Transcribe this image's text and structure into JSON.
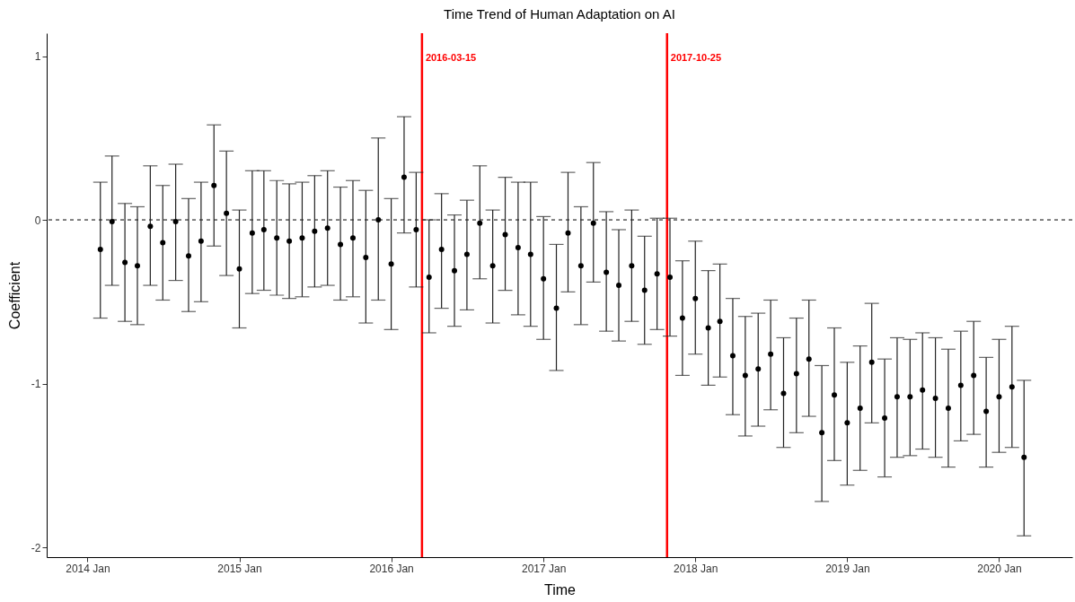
{
  "chart_data": {
    "type": "scatter",
    "title": "Time Trend of Human Adaptation on AI",
    "xlabel": "Time",
    "ylabel": "Coefficient",
    "marker": "circle",
    "x": [
      "2014-02",
      "2014-03",
      "2014-04",
      "2014-05",
      "2014-06",
      "2014-07",
      "2014-08",
      "2014-09",
      "2014-10",
      "2014-11",
      "2014-12",
      "2015-01",
      "2015-02",
      "2015-03",
      "2015-04",
      "2015-05",
      "2015-06",
      "2015-07",
      "2015-08",
      "2015-09",
      "2015-10",
      "2015-11",
      "2015-12",
      "2016-01",
      "2016-02",
      "2016-03",
      "2016-04",
      "2016-05",
      "2016-06",
      "2016-07",
      "2016-08",
      "2016-09",
      "2016-10",
      "2016-11",
      "2016-12",
      "2017-01",
      "2017-02",
      "2017-03",
      "2017-04",
      "2017-05",
      "2017-06",
      "2017-07",
      "2017-08",
      "2017-09",
      "2017-10",
      "2017-11",
      "2017-12",
      "2018-01",
      "2018-02",
      "2018-03",
      "2018-04",
      "2018-05",
      "2018-06",
      "2018-07",
      "2018-08",
      "2018-09",
      "2018-10",
      "2018-11",
      "2018-12",
      "2019-01",
      "2019-02",
      "2019-03",
      "2019-04",
      "2019-05",
      "2019-06",
      "2019-07",
      "2019-08",
      "2019-09",
      "2019-10",
      "2019-11",
      "2019-12",
      "2020-01",
      "2020-02",
      "2020-03"
    ],
    "series": [
      {
        "color": "#000000",
        "values": [
          -0.18,
          -0.01,
          -0.26,
          -0.28,
          -0.04,
          -0.14,
          -0.01,
          -0.22,
          -0.13,
          0.21,
          0.04,
          -0.3,
          -0.08,
          -0.06,
          -0.11,
          -0.13,
          -0.11,
          -0.07,
          -0.05,
          -0.15,
          -0.11,
          -0.23,
          0.0,
          -0.27,
          0.26,
          -0.06,
          -0.35,
          -0.18,
          -0.31,
          -0.21,
          -0.02,
          -0.28,
          -0.09,
          -0.17,
          -0.21,
          -0.36,
          -0.54,
          -0.08,
          -0.28,
          -0.02,
          -0.32,
          -0.4,
          -0.28,
          -0.43,
          -0.33,
          -0.35,
          -0.6,
          -0.48,
          -0.66,
          -0.62,
          -0.83,
          -0.95,
          -0.91,
          -0.82,
          -1.06,
          -0.94,
          -0.85,
          -1.3,
          -1.07,
          -1.24,
          -1.15,
          -0.87,
          -1.21,
          -1.08,
          -1.08,
          -1.04,
          -1.09,
          -1.15,
          -1.01,
          -0.95,
          -1.17,
          -1.08,
          -1.02,
          -1.45
        ],
        "errors": [
          [
            -0.6,
            0.23
          ],
          [
            -0.4,
            0.39
          ],
          [
            -0.62,
            0.1
          ],
          [
            -0.64,
            0.08
          ],
          [
            -0.4,
            0.33
          ],
          [
            -0.49,
            0.21
          ],
          [
            -0.37,
            0.34
          ],
          [
            -0.56,
            0.13
          ],
          [
            -0.5,
            0.23
          ],
          [
            -0.16,
            0.58
          ],
          [
            -0.34,
            0.42
          ],
          [
            -0.66,
            0.06
          ],
          [
            -0.45,
            0.3
          ],
          [
            -0.43,
            0.3
          ],
          [
            -0.46,
            0.24
          ],
          [
            -0.48,
            0.22
          ],
          [
            -0.47,
            0.23
          ],
          [
            -0.41,
            0.27
          ],
          [
            -0.4,
            0.3
          ],
          [
            -0.49,
            0.2
          ],
          [
            -0.47,
            0.24
          ],
          [
            -0.63,
            0.18
          ],
          [
            -0.49,
            0.5
          ],
          [
            -0.67,
            0.13
          ],
          [
            -0.08,
            0.63
          ],
          [
            -0.41,
            0.29
          ],
          [
            -0.69,
            0.0
          ],
          [
            -0.54,
            0.16
          ],
          [
            -0.65,
            0.03
          ],
          [
            -0.55,
            0.12
          ],
          [
            -0.36,
            0.33
          ],
          [
            -0.63,
            0.06
          ],
          [
            -0.43,
            0.26
          ],
          [
            -0.58,
            0.23
          ],
          [
            -0.65,
            0.23
          ],
          [
            -0.73,
            0.02
          ],
          [
            -0.92,
            -0.15
          ],
          [
            -0.44,
            0.29
          ],
          [
            -0.64,
            0.08
          ],
          [
            -0.38,
            0.35
          ],
          [
            -0.68,
            0.05
          ],
          [
            -0.74,
            -0.06
          ],
          [
            -0.62,
            0.06
          ],
          [
            -0.76,
            -0.1
          ],
          [
            -0.67,
            0.01
          ],
          [
            -0.71,
            0.01
          ],
          [
            -0.95,
            -0.25
          ],
          [
            -0.82,
            -0.13
          ],
          [
            -1.01,
            -0.31
          ],
          [
            -0.96,
            -0.27
          ],
          [
            -1.19,
            -0.48
          ],
          [
            -1.32,
            -0.59
          ],
          [
            -1.26,
            -0.57
          ],
          [
            -1.16,
            -0.49
          ],
          [
            -1.39,
            -0.72
          ],
          [
            -1.3,
            -0.6
          ],
          [
            -1.2,
            -0.49
          ],
          [
            -1.72,
            -0.89
          ],
          [
            -1.47,
            -0.66
          ],
          [
            -1.62,
            -0.87
          ],
          [
            -1.53,
            -0.77
          ],
          [
            -1.24,
            -0.51
          ],
          [
            -1.57,
            -0.85
          ],
          [
            -1.45,
            -0.72
          ],
          [
            -1.44,
            -0.73
          ],
          [
            -1.4,
            -0.69
          ],
          [
            -1.45,
            -0.72
          ],
          [
            -1.51,
            -0.79
          ],
          [
            -1.35,
            -0.68
          ],
          [
            -1.31,
            -0.62
          ],
          [
            -1.51,
            -0.84
          ],
          [
            -1.42,
            -0.73
          ],
          [
            -1.39,
            -0.65
          ],
          [
            -1.93,
            -0.98
          ]
        ]
      }
    ],
    "xlim": [
      "2013-09-25",
      "2020-06-25"
    ],
    "ylim": [
      -2.06,
      1.14
    ],
    "xticks": [
      {
        "value": "2014-01",
        "label": "2014 Jan"
      },
      {
        "value": "2015-01",
        "label": "2015 Jan"
      },
      {
        "value": "2016-01",
        "label": "2016 Jan"
      },
      {
        "value": "2017-01",
        "label": "2017 Jan"
      },
      {
        "value": "2018-01",
        "label": "2018 Jan"
      },
      {
        "value": "2019-01",
        "label": "2019 Jan"
      },
      {
        "value": "2020-01",
        "label": "2020 Jan"
      }
    ],
    "yticks": [
      -2,
      -1,
      0,
      1
    ],
    "ref_lines": [
      {
        "axis": "y",
        "value": 0,
        "color": "#000000",
        "line_style": "dashed"
      },
      {
        "axis": "x",
        "value": "2016-03-15",
        "label": "2016-03-15",
        "color": "#ff0000",
        "line_style": "solid"
      },
      {
        "axis": "x",
        "value": "2017-10-25",
        "label": "2017-10-25",
        "color": "#ff0000",
        "line_style": "solid"
      }
    ]
  }
}
